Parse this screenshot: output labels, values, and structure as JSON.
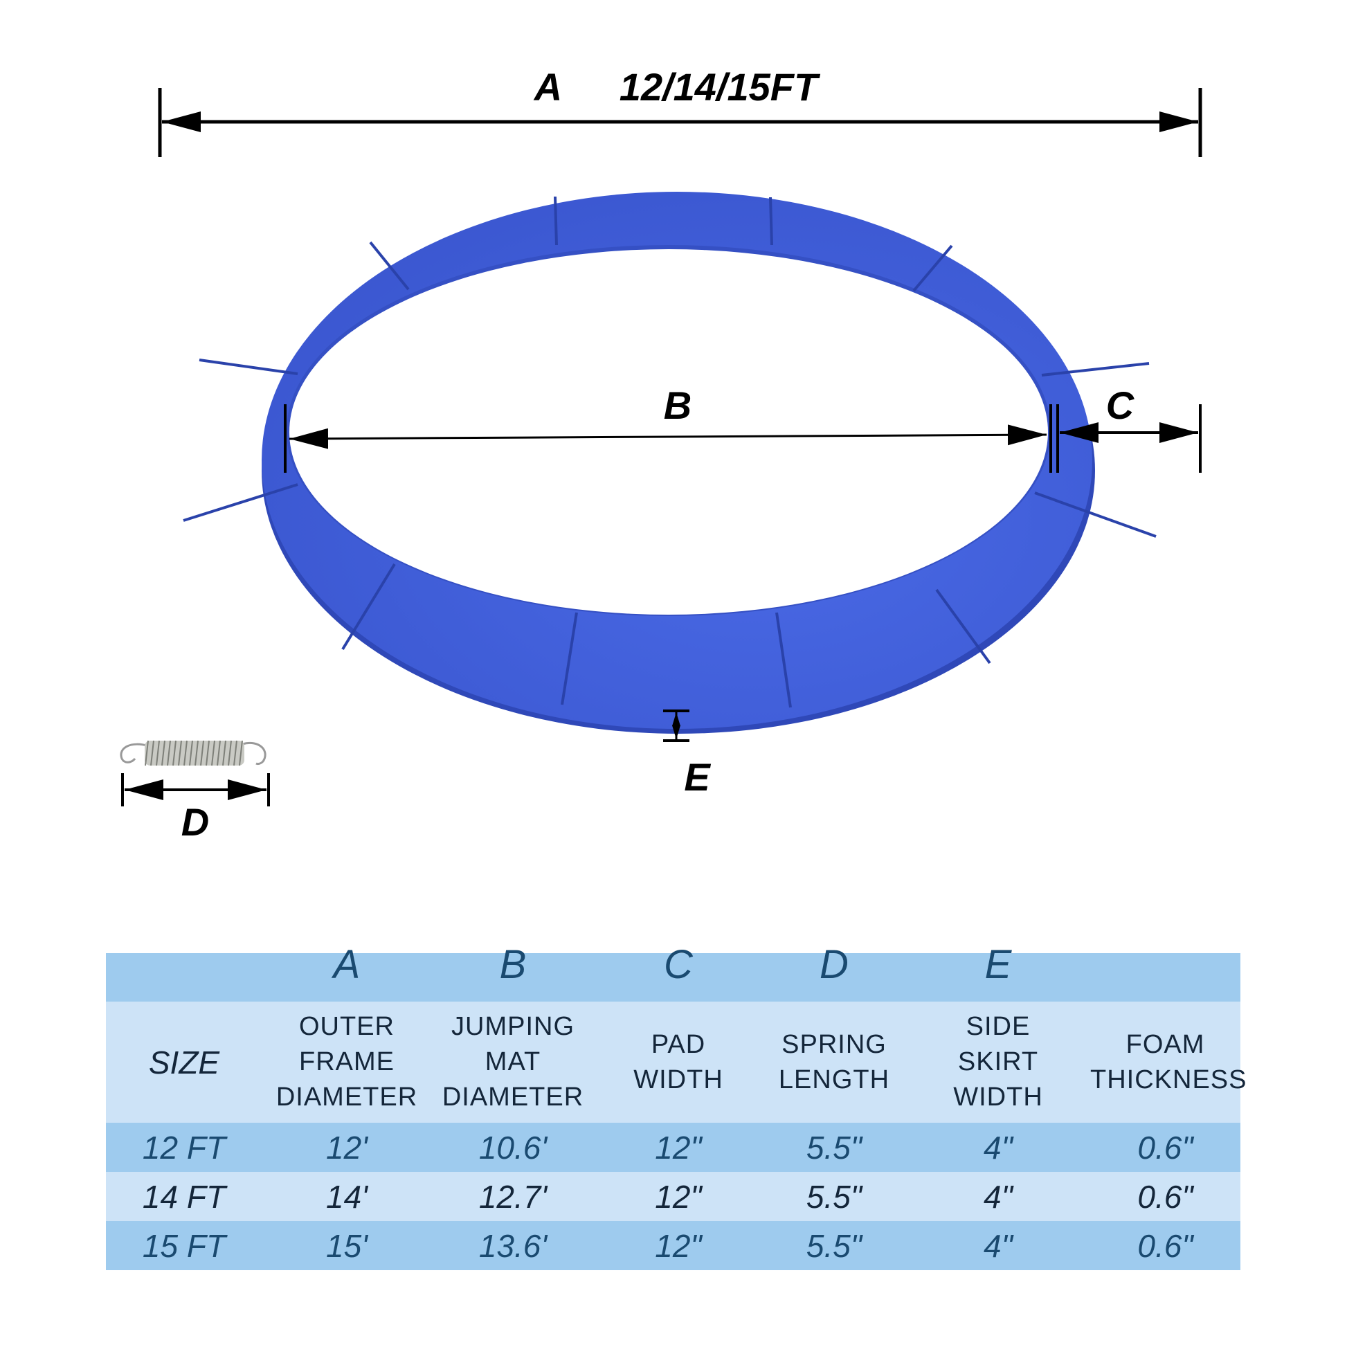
{
  "diagram": {
    "dimension_A_letter": "A",
    "dimension_A_value": "12/14/15FT",
    "dimension_B_letter": "B",
    "dimension_C_letter": "C",
    "dimension_D_letter": "D",
    "dimension_E_letter": "E",
    "pad_color": "#3f5fdc"
  },
  "table": {
    "letters": [
      "",
      "A",
      "B",
      "C",
      "D",
      "E",
      ""
    ],
    "headers": [
      [
        "SIZE"
      ],
      [
        "OUTER",
        "FRAME",
        "DIAMETER"
      ],
      [
        "JUMPING",
        "MAT",
        "DIAMETER"
      ],
      [
        "PAD",
        "WIDTH"
      ],
      [
        "SPRING",
        "LENGTH"
      ],
      [
        "SIDE",
        "SKIRT",
        "WIDTH"
      ],
      [
        "FOAM",
        "THICKNESS"
      ]
    ],
    "rows": [
      [
        "12 FT",
        "12'",
        "10.6'",
        "12\"",
        "5.5\"",
        "4\"",
        "0.6\""
      ],
      [
        "14 FT",
        "14'",
        "12.7'",
        "12\"",
        "5.5\"",
        "4\"",
        "0.6\""
      ],
      [
        "15 FT",
        "15'",
        "13.6'",
        "12\"",
        "5.5\"",
        "4\"",
        "0.6\""
      ]
    ],
    "band_color": "#9ecbee",
    "light_color": "#cde3f7"
  }
}
